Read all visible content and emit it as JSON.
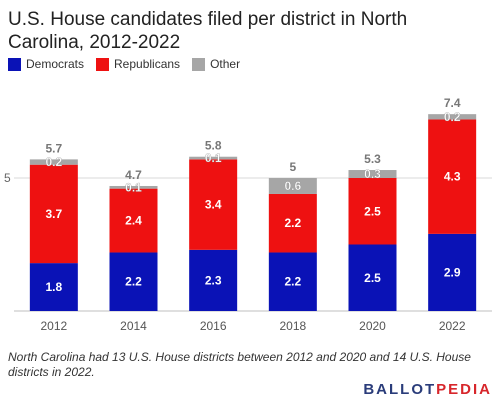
{
  "title": "U.S. House candidates filed per district in North Carolina, 2012-2022",
  "legend": [
    {
      "label": "Democrats",
      "color": "#0a12b6"
    },
    {
      "label": "Republicans",
      "color": "#ee1111"
    },
    {
      "label": "Other",
      "color": "#a6a6a6"
    }
  ],
  "chart_data": {
    "type": "bar",
    "stacked": true,
    "categories": [
      "2012",
      "2014",
      "2016",
      "2018",
      "2020",
      "2022"
    ],
    "series": [
      {
        "name": "Democrats",
        "values": [
          1.8,
          2.2,
          2.3,
          2.2,
          2.5,
          2.9
        ],
        "color": "#0a12b6"
      },
      {
        "name": "Republicans",
        "values": [
          3.7,
          2.4,
          3.4,
          2.2,
          2.5,
          4.3
        ],
        "color": "#ee1111"
      },
      {
        "name": "Other",
        "values": [
          0.2,
          0.1,
          0.1,
          0.6,
          0.3,
          0.2
        ],
        "color": "#a6a6a6"
      }
    ],
    "totals": [
      "5.7",
      "4.7",
      "5.8",
      "5",
      "5.3",
      "7.4"
    ],
    "yticks": [
      5
    ],
    "ylim": [
      0,
      8
    ],
    "grid": true
  },
  "footnote": "North Carolina had 13 U.S. House districts between 2012 and 2020 and 14 U.S. House districts in 2022.",
  "logo": {
    "part1": "BALLOT",
    "part2": "PEDIA"
  }
}
